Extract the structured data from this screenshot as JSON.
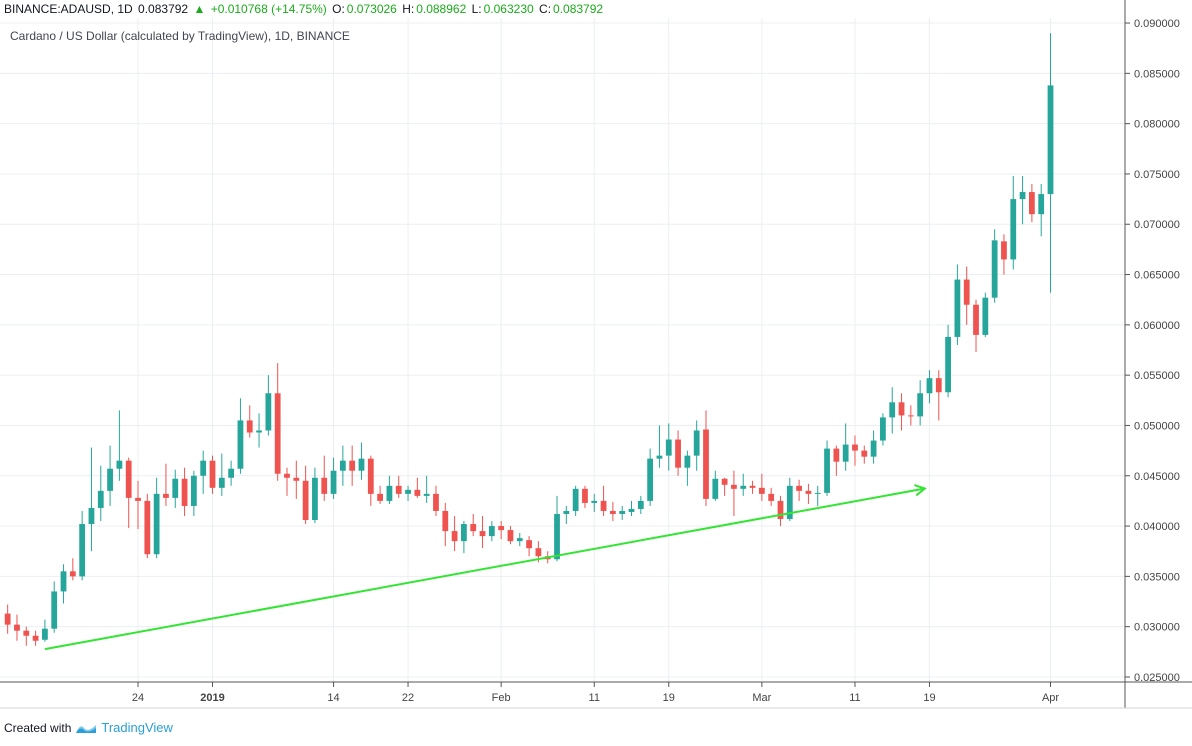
{
  "header": {
    "symbol": "BINANCE:ADAUSD, 1D",
    "last": "0.083792",
    "change_arrow": "▲",
    "change": "+0.010768 (+14.75%)",
    "o_label": "O:",
    "o_value": "0.073026",
    "h_label": "H:",
    "h_value": "0.088962",
    "l_label": "L:",
    "l_value": "0.063230",
    "c_label": "C:",
    "c_value": "0.083792"
  },
  "subtitle": "Cardano / US Dollar (calculated by TradingView), 1D, BINANCE",
  "footer": {
    "created_with": "Created with",
    "brand": "TradingView"
  },
  "colors": {
    "up": "#26a69a",
    "down": "#ef5350",
    "trend": "#33e533",
    "grid": "#eceff2",
    "axis": "#555555"
  },
  "chart_data": {
    "type": "candlestick",
    "title": "Cardano / US Dollar (calculated by TradingView), 1D, BINANCE",
    "ylim": [
      0.0245,
      0.0905
    ],
    "y_ticks": [
      "0.025000",
      "0.030000",
      "0.035000",
      "0.040000",
      "0.045000",
      "0.050000",
      "0.055000",
      "0.060000",
      "0.065000",
      "0.070000",
      "0.075000",
      "0.080000",
      "0.085000",
      "0.090000"
    ],
    "x_ticks": [
      {
        "label": "24",
        "day": 14
      },
      {
        "label": "2019",
        "day": 22
      },
      {
        "label": "14",
        "day": 35
      },
      {
        "label": "22",
        "day": 43
      },
      {
        "label": "Feb",
        "day": 53
      },
      {
        "label": "11",
        "day": 63
      },
      {
        "label": "19",
        "day": 71
      },
      {
        "label": "Mar",
        "day": 81
      },
      {
        "label": "11",
        "day": 91
      },
      {
        "label": "19",
        "day": 99
      },
      {
        "label": "Apr",
        "day": 112
      }
    ],
    "x_range": [
      -0.5,
      120
    ],
    "candles": [
      {
        "o": 0.0313,
        "h": 0.0322,
        "l": 0.0293,
        "c": 0.0302
      },
      {
        "o": 0.0302,
        "h": 0.0312,
        "l": 0.0286,
        "c": 0.0296
      },
      {
        "o": 0.0296,
        "h": 0.03,
        "l": 0.0281,
        "c": 0.0291
      },
      {
        "o": 0.0291,
        "h": 0.0296,
        "l": 0.0281,
        "c": 0.0286
      },
      {
        "o": 0.0287,
        "h": 0.0307,
        "l": 0.0285,
        "c": 0.0298
      },
      {
        "o": 0.0298,
        "h": 0.0345,
        "l": 0.0294,
        "c": 0.0335
      },
      {
        "o": 0.0335,
        "h": 0.0362,
        "l": 0.0323,
        "c": 0.0355
      },
      {
        "o": 0.0355,
        "h": 0.0368,
        "l": 0.0346,
        "c": 0.035
      },
      {
        "o": 0.035,
        "h": 0.0415,
        "l": 0.0346,
        "c": 0.0402
      },
      {
        "o": 0.0402,
        "h": 0.0478,
        "l": 0.0375,
        "c": 0.0418
      },
      {
        "o": 0.0418,
        "h": 0.046,
        "l": 0.0405,
        "c": 0.0435
      },
      {
        "o": 0.0435,
        "h": 0.048,
        "l": 0.042,
        "c": 0.0457
      },
      {
        "o": 0.0457,
        "h": 0.0515,
        "l": 0.0445,
        "c": 0.0465
      },
      {
        "o": 0.0465,
        "h": 0.0468,
        "l": 0.0398,
        "c": 0.0428
      },
      {
        "o": 0.0428,
        "h": 0.0445,
        "l": 0.0397,
        "c": 0.0425
      },
      {
        "o": 0.0425,
        "h": 0.0432,
        "l": 0.0368,
        "c": 0.0372
      },
      {
        "o": 0.0372,
        "h": 0.0448,
        "l": 0.0368,
        "c": 0.0432
      },
      {
        "o": 0.0432,
        "h": 0.0462,
        "l": 0.042,
        "c": 0.0428
      },
      {
        "o": 0.0428,
        "h": 0.0456,
        "l": 0.0418,
        "c": 0.0447
      },
      {
        "o": 0.0447,
        "h": 0.0458,
        "l": 0.041,
        "c": 0.042
      },
      {
        "o": 0.042,
        "h": 0.0455,
        "l": 0.041,
        "c": 0.045
      },
      {
        "o": 0.045,
        "h": 0.0475,
        "l": 0.0432,
        "c": 0.0465
      },
      {
        "o": 0.0465,
        "h": 0.047,
        "l": 0.0432,
        "c": 0.0438
      },
      {
        "o": 0.0438,
        "h": 0.0472,
        "l": 0.043,
        "c": 0.0448
      },
      {
        "o": 0.0448,
        "h": 0.0465,
        "l": 0.044,
        "c": 0.0457
      },
      {
        "o": 0.0457,
        "h": 0.0527,
        "l": 0.0452,
        "c": 0.0505
      },
      {
        "o": 0.0505,
        "h": 0.052,
        "l": 0.0488,
        "c": 0.0493
      },
      {
        "o": 0.0493,
        "h": 0.0512,
        "l": 0.0478,
        "c": 0.0495
      },
      {
        "o": 0.0495,
        "h": 0.055,
        "l": 0.049,
        "c": 0.0532
      },
      {
        "o": 0.0532,
        "h": 0.0562,
        "l": 0.0445,
        "c": 0.0452
      },
      {
        "o": 0.0452,
        "h": 0.0458,
        "l": 0.043,
        "c": 0.0448
      },
      {
        "o": 0.0448,
        "h": 0.0465,
        "l": 0.0427,
        "c": 0.0445
      },
      {
        "o": 0.0445,
        "h": 0.046,
        "l": 0.0402,
        "c": 0.0406
      },
      {
        "o": 0.0406,
        "h": 0.0458,
        "l": 0.0403,
        "c": 0.0448
      },
      {
        "o": 0.0448,
        "h": 0.047,
        "l": 0.0425,
        "c": 0.0432
      },
      {
        "o": 0.0432,
        "h": 0.0468,
        "l": 0.0427,
        "c": 0.0455
      },
      {
        "o": 0.0455,
        "h": 0.048,
        "l": 0.044,
        "c": 0.0465
      },
      {
        "o": 0.0465,
        "h": 0.048,
        "l": 0.044,
        "c": 0.0455
      },
      {
        "o": 0.0455,
        "h": 0.0483,
        "l": 0.0446,
        "c": 0.0467
      },
      {
        "o": 0.0467,
        "h": 0.047,
        "l": 0.042,
        "c": 0.0432
      },
      {
        "o": 0.0432,
        "h": 0.044,
        "l": 0.0422,
        "c": 0.0425
      },
      {
        "o": 0.0425,
        "h": 0.045,
        "l": 0.0422,
        "c": 0.044
      },
      {
        "o": 0.044,
        "h": 0.045,
        "l": 0.0428,
        "c": 0.0432
      },
      {
        "o": 0.0432,
        "h": 0.044,
        "l": 0.0425,
        "c": 0.0436
      },
      {
        "o": 0.0436,
        "h": 0.0448,
        "l": 0.0428,
        "c": 0.043
      },
      {
        "o": 0.043,
        "h": 0.045,
        "l": 0.0423,
        "c": 0.0432
      },
      {
        "o": 0.0432,
        "h": 0.044,
        "l": 0.041,
        "c": 0.0415
      },
      {
        "o": 0.0415,
        "h": 0.0423,
        "l": 0.038,
        "c": 0.0395
      },
      {
        "o": 0.0395,
        "h": 0.041,
        "l": 0.0375,
        "c": 0.0385
      },
      {
        "o": 0.0385,
        "h": 0.0405,
        "l": 0.0373,
        "c": 0.0402
      },
      {
        "o": 0.0402,
        "h": 0.0412,
        "l": 0.039,
        "c": 0.0395
      },
      {
        "o": 0.0395,
        "h": 0.041,
        "l": 0.0378,
        "c": 0.039
      },
      {
        "o": 0.039,
        "h": 0.0405,
        "l": 0.0385,
        "c": 0.04
      },
      {
        "o": 0.04,
        "h": 0.0405,
        "l": 0.0387,
        "c": 0.0396
      },
      {
        "o": 0.0396,
        "h": 0.04,
        "l": 0.0382,
        "c": 0.0385
      },
      {
        "o": 0.0385,
        "h": 0.0393,
        "l": 0.038,
        "c": 0.0388
      },
      {
        "o": 0.0386,
        "h": 0.039,
        "l": 0.037,
        "c": 0.0378
      },
      {
        "o": 0.0378,
        "h": 0.0385,
        "l": 0.0364,
        "c": 0.037
      },
      {
        "o": 0.037,
        "h": 0.0375,
        "l": 0.0363,
        "c": 0.0367
      },
      {
        "o": 0.0367,
        "h": 0.043,
        "l": 0.0365,
        "c": 0.0412
      },
      {
        "o": 0.0412,
        "h": 0.042,
        "l": 0.0402,
        "c": 0.0415
      },
      {
        "o": 0.0415,
        "h": 0.044,
        "l": 0.041,
        "c": 0.0437
      },
      {
        "o": 0.0437,
        "h": 0.044,
        "l": 0.0418,
        "c": 0.0423
      },
      {
        "o": 0.0423,
        "h": 0.0432,
        "l": 0.0414,
        "c": 0.0425
      },
      {
        "o": 0.0425,
        "h": 0.044,
        "l": 0.041,
        "c": 0.0415
      },
      {
        "o": 0.0415,
        "h": 0.0424,
        "l": 0.0405,
        "c": 0.0412
      },
      {
        "o": 0.0412,
        "h": 0.042,
        "l": 0.0406,
        "c": 0.0415
      },
      {
        "o": 0.0414,
        "h": 0.0425,
        "l": 0.041,
        "c": 0.0417
      },
      {
        "o": 0.0417,
        "h": 0.043,
        "l": 0.0412,
        "c": 0.0425
      },
      {
        "o": 0.0425,
        "h": 0.0477,
        "l": 0.042,
        "c": 0.0467
      },
      {
        "o": 0.0467,
        "h": 0.05,
        "l": 0.0458,
        "c": 0.047
      },
      {
        "o": 0.047,
        "h": 0.0502,
        "l": 0.0455,
        "c": 0.0486
      },
      {
        "o": 0.0486,
        "h": 0.0495,
        "l": 0.045,
        "c": 0.0458
      },
      {
        "o": 0.0458,
        "h": 0.0475,
        "l": 0.044,
        "c": 0.047
      },
      {
        "o": 0.047,
        "h": 0.0505,
        "l": 0.0455,
        "c": 0.0495
      },
      {
        "o": 0.0496,
        "h": 0.0515,
        "l": 0.042,
        "c": 0.0427
      },
      {
        "o": 0.0427,
        "h": 0.0455,
        "l": 0.0425,
        "c": 0.0447
      },
      {
        "o": 0.0447,
        "h": 0.0448,
        "l": 0.043,
        "c": 0.0441
      },
      {
        "o": 0.0441,
        "h": 0.0455,
        "l": 0.041,
        "c": 0.0437
      },
      {
        "o": 0.0437,
        "h": 0.0452,
        "l": 0.043,
        "c": 0.044
      },
      {
        "o": 0.044,
        "h": 0.0445,
        "l": 0.0432,
        "c": 0.0438
      },
      {
        "o": 0.0438,
        "h": 0.0452,
        "l": 0.0425,
        "c": 0.0432
      },
      {
        "o": 0.0432,
        "h": 0.0438,
        "l": 0.042,
        "c": 0.0425
      },
      {
        "o": 0.0425,
        "h": 0.043,
        "l": 0.04,
        "c": 0.0407
      },
      {
        "o": 0.0407,
        "h": 0.0448,
        "l": 0.0405,
        "c": 0.044
      },
      {
        "o": 0.044,
        "h": 0.0446,
        "l": 0.0425,
        "c": 0.0435
      },
      {
        "o": 0.0435,
        "h": 0.0442,
        "l": 0.0422,
        "c": 0.0432
      },
      {
        "o": 0.0432,
        "h": 0.044,
        "l": 0.042,
        "c": 0.0433
      },
      {
        "o": 0.0433,
        "h": 0.0485,
        "l": 0.043,
        "c": 0.0477
      },
      {
        "o": 0.0477,
        "h": 0.048,
        "l": 0.045,
        "c": 0.0464
      },
      {
        "o": 0.0464,
        "h": 0.0502,
        "l": 0.0455,
        "c": 0.0481
      },
      {
        "o": 0.0481,
        "h": 0.049,
        "l": 0.046,
        "c": 0.0475
      },
      {
        "o": 0.0475,
        "h": 0.048,
        "l": 0.0462,
        "c": 0.0469
      },
      {
        "o": 0.0469,
        "h": 0.0495,
        "l": 0.0462,
        "c": 0.0485
      },
      {
        "o": 0.0485,
        "h": 0.0512,
        "l": 0.048,
        "c": 0.0508
      },
      {
        "o": 0.0508,
        "h": 0.0538,
        "l": 0.0492,
        "c": 0.0523
      },
      {
        "o": 0.0523,
        "h": 0.0532,
        "l": 0.0495,
        "c": 0.051
      },
      {
        "o": 0.051,
        "h": 0.052,
        "l": 0.05,
        "c": 0.0509
      },
      {
        "o": 0.0509,
        "h": 0.0545,
        "l": 0.05,
        "c": 0.0532
      },
      {
        "o": 0.0532,
        "h": 0.0555,
        "l": 0.0522,
        "c": 0.0547
      },
      {
        "o": 0.0547,
        "h": 0.0555,
        "l": 0.0505,
        "c": 0.0533
      },
      {
        "o": 0.0533,
        "h": 0.06,
        "l": 0.0528,
        "c": 0.0588
      },
      {
        "o": 0.0588,
        "h": 0.066,
        "l": 0.058,
        "c": 0.0645
      },
      {
        "o": 0.0645,
        "h": 0.0658,
        "l": 0.06,
        "c": 0.062
      },
      {
        "o": 0.062,
        "h": 0.0625,
        "l": 0.0573,
        "c": 0.059
      },
      {
        "o": 0.059,
        "h": 0.0632,
        "l": 0.0588,
        "c": 0.0627
      },
      {
        "o": 0.0627,
        "h": 0.0695,
        "l": 0.0622,
        "c": 0.0684
      },
      {
        "o": 0.0683,
        "h": 0.069,
        "l": 0.065,
        "c": 0.0665
      },
      {
        "o": 0.0665,
        "h": 0.0748,
        "l": 0.0655,
        "c": 0.0725
      },
      {
        "o": 0.0725,
        "h": 0.0748,
        "l": 0.07,
        "c": 0.0732
      },
      {
        "o": 0.0732,
        "h": 0.074,
        "l": 0.0702,
        "c": 0.071
      },
      {
        "o": 0.071,
        "h": 0.074,
        "l": 0.0688,
        "c": 0.073
      },
      {
        "o": 0.073,
        "h": 0.089,
        "l": 0.0632,
        "c": 0.0838
      }
    ],
    "trendline": {
      "start": {
        "day": 4,
        "price": 0.02777
      },
      "end": {
        "day": 98.5,
        "price": 0.04373
      }
    }
  }
}
